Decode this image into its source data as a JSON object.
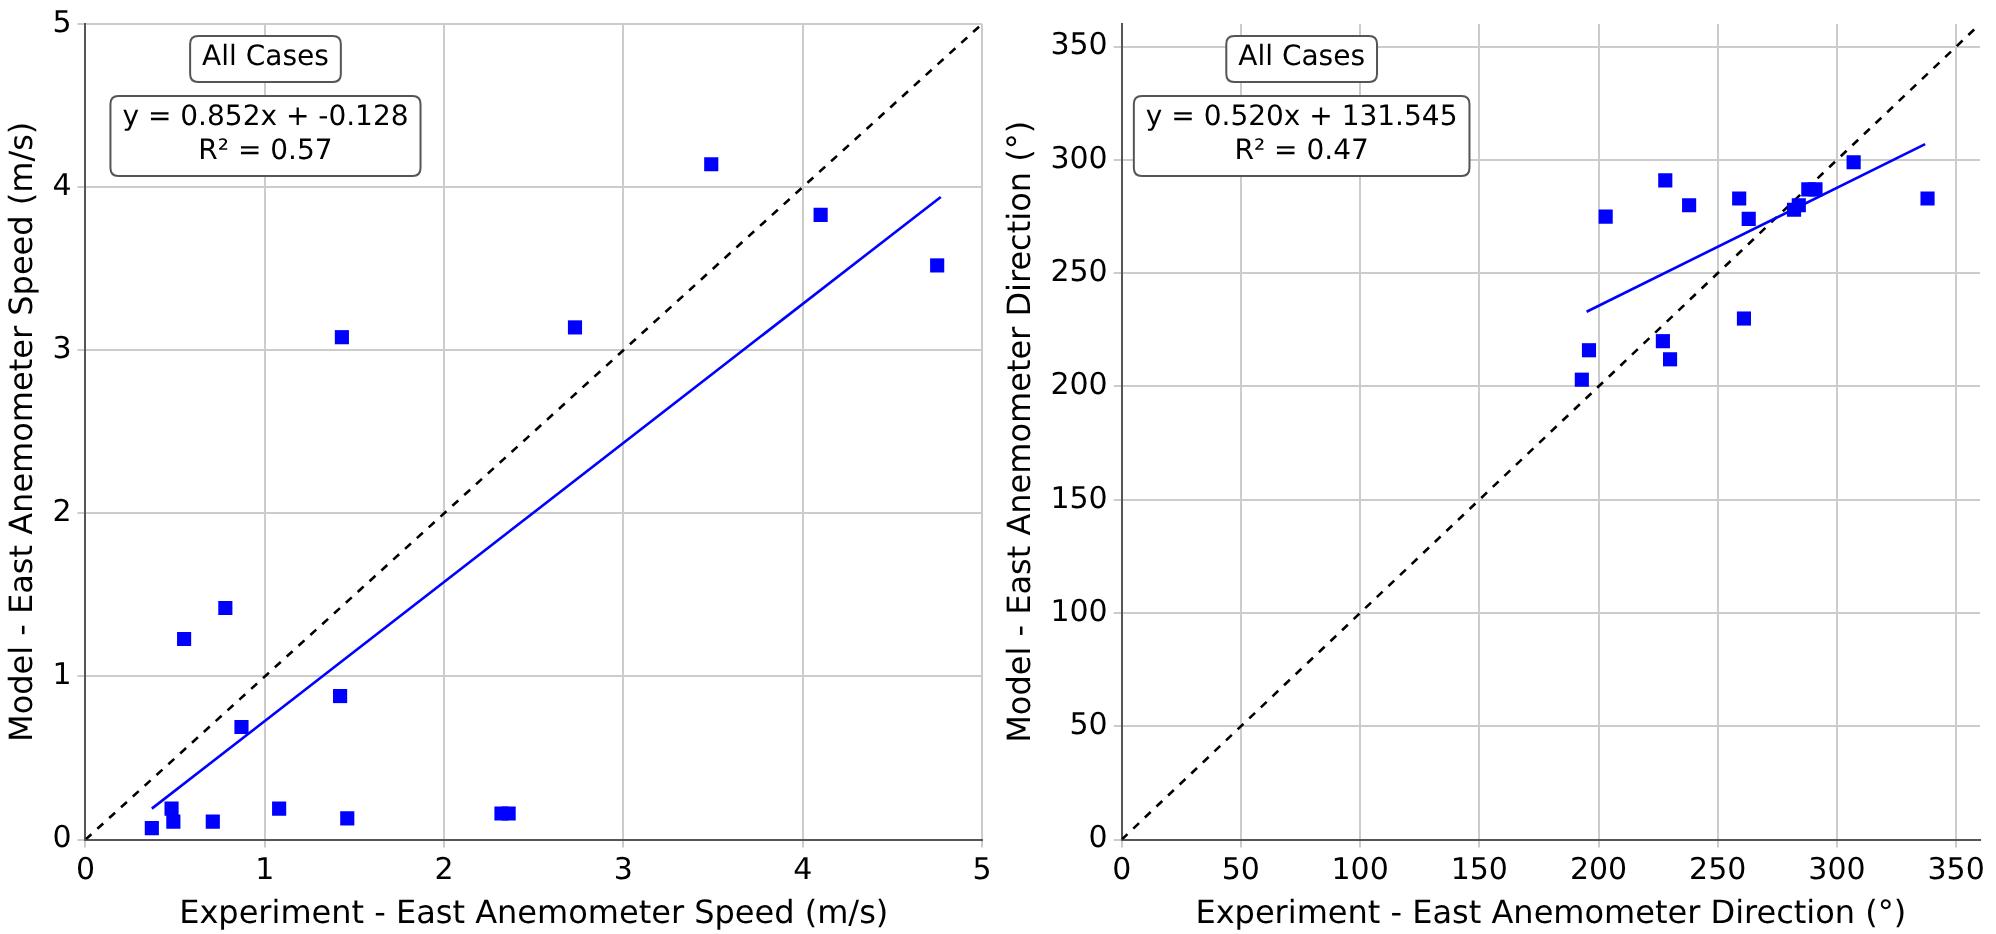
{
  "chart_data": [
    {
      "type": "scatter",
      "xlabel": "Experiment - East Anemometer Speed (m/s)",
      "ylabel": "Model - East Anemometer Speed (m/s)",
      "annotations": [
        "All Cases",
        "y = 0.852x + -0.128\nR² = 0.57"
      ],
      "xlim": [
        0,
        5
      ],
      "ylim": [
        0,
        5
      ],
      "xticks": [
        0,
        1,
        2,
        3,
        4,
        5
      ],
      "yticks": [
        0,
        1,
        2,
        3,
        4,
        5
      ],
      "grid": true,
      "legend": false,
      "series": [
        {
          "marker": "square",
          "color": "#0000ff",
          "x": [
            4.75,
            3.49,
            4.1,
            2.73,
            1.43,
            0.78,
            0.55,
            1.42,
            0.87,
            1.08,
            1.46,
            2.32,
            2.36,
            0.71,
            0.48,
            0.49,
            0.37
          ],
          "values": [
            3.52,
            4.14,
            3.83,
            3.14,
            3.08,
            1.42,
            1.23,
            0.88,
            0.69,
            0.19,
            0.13,
            0.16,
            0.16,
            0.11,
            0.19,
            0.11,
            0.07
          ]
        },
        {
          "type": "line",
          "marker": "none",
          "color": "#0000ff",
          "line_style": "solid",
          "x": [
            0.37,
            4.77
          ],
          "values": [
            0.19,
            3.94
          ]
        },
        {
          "type": "line",
          "marker": "none",
          "color": "#000000",
          "line_style": "dashed",
          "x": [
            0,
            5
          ],
          "values": [
            0,
            5
          ]
        }
      ]
    },
    {
      "type": "scatter",
      "xlabel": "Experiment - East Anemometer Direction (°)",
      "ylabel": "Model - East Anemometer Direction (°)",
      "annotations": [
        "All Cases",
        "y = 0.520x + 131.545\nR² = 0.47"
      ],
      "xlim": [
        0,
        360
      ],
      "ylim": [
        0,
        360
      ],
      "xticks": [
        0,
        50,
        100,
        150,
        200,
        250,
        300,
        350
      ],
      "yticks": [
        0,
        50,
        100,
        150,
        200,
        250,
        300,
        350
      ],
      "grid": true,
      "legend": false,
      "series": [
        {
          "marker": "square",
          "color": "#0000ff",
          "x": [
            203,
            228,
            238,
            259,
            263,
            282,
            284,
            288,
            291,
            307,
            338,
            261,
            227,
            230,
            196,
            193
          ],
          "values": [
            275,
            291,
            280,
            283,
            274,
            278,
            280,
            287,
            287,
            299,
            283,
            230,
            220,
            212,
            216,
            203
          ]
        },
        {
          "type": "line",
          "marker": "none",
          "color": "#0000ff",
          "line_style": "solid",
          "x": [
            195,
            337
          ],
          "values": [
            233,
            307
          ]
        },
        {
          "type": "line",
          "marker": "none",
          "color": "#000000",
          "line_style": "dashed",
          "x": [
            0,
            360
          ],
          "values": [
            0,
            360
          ]
        }
      ]
    }
  ]
}
